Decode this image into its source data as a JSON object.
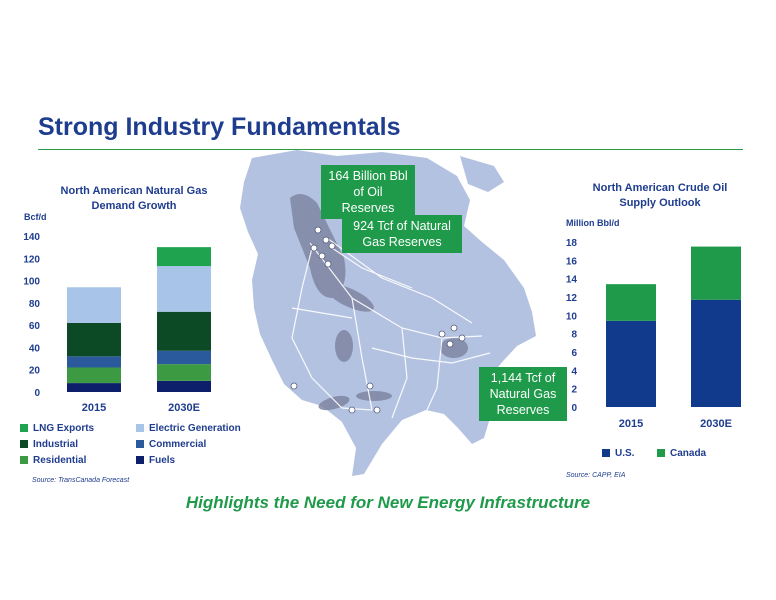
{
  "slide": {
    "title": "Strong Industry Fundamentals",
    "tagline": "Highlights the Need for New Energy Infrastructure"
  },
  "callouts": {
    "oil_reserves": [
      "164 Billion Bbl",
      "of Oil Reserves"
    ],
    "gas_reserves_west": [
      "924 Tcf of Natural",
      "Gas Reserves"
    ],
    "gas_reserves_east": [
      "1,144 Tcf of",
      "Natural Gas",
      "Reserves"
    ]
  },
  "colors": {
    "title": "#1f3d8f",
    "accent_green": "#1e9a4a",
    "map_land": "#b4c2e1",
    "map_line": "#ffffff"
  },
  "chart_data": [
    {
      "type": "bar",
      "stacked": true,
      "title": "North American Natural Gas Demand Growth",
      "ylabel": "Bcf/d",
      "ylim": [
        0,
        140
      ],
      "yticks": [
        0,
        20,
        40,
        60,
        80,
        100,
        120,
        140
      ],
      "categories": [
        "2015",
        "2030E"
      ],
      "series": [
        {
          "name": "Fuels",
          "color": "#0d1e6b",
          "values": [
            8,
            10
          ]
        },
        {
          "name": "Residential",
          "color": "#3c9a43",
          "values": [
            14,
            15
          ]
        },
        {
          "name": "Commercial",
          "color": "#2a5a9c",
          "values": [
            10,
            12
          ]
        },
        {
          "name": "Industrial",
          "color": "#0b4a25",
          "values": [
            30,
            35
          ]
        },
        {
          "name": "Electric Generation",
          "color": "#a8c4e8",
          "values": [
            32,
            41
          ]
        },
        {
          "name": "LNG Exports",
          "color": "#1fa34f",
          "values": [
            0,
            17
          ]
        }
      ],
      "legend_order": [
        "LNG Exports",
        "Electric Generation",
        "Industrial",
        "Commercial",
        "Residential",
        "Fuels"
      ],
      "legend_placement": "bottom",
      "source": "Source:  TransCanada Forecast"
    },
    {
      "type": "bar",
      "stacked": true,
      "title": "North American Crude Oil Supply Outlook",
      "ylabel": "Million Bbl/d",
      "ylim": [
        0,
        18
      ],
      "yticks": [
        0,
        2,
        4,
        6,
        8,
        10,
        12,
        14,
        16,
        18
      ],
      "categories": [
        "2015",
        "2030E"
      ],
      "series": [
        {
          "name": "U.S.",
          "color": "#123a8c",
          "values": [
            9.4,
            11.7
          ]
        },
        {
          "name": "Canada",
          "color": "#1e9a4a",
          "values": [
            4.0,
            5.8
          ]
        }
      ],
      "legend_order": [
        "U.S.",
        "Canada"
      ],
      "legend_placement": "bottom",
      "source": "Source: CAPP, EIA"
    }
  ]
}
